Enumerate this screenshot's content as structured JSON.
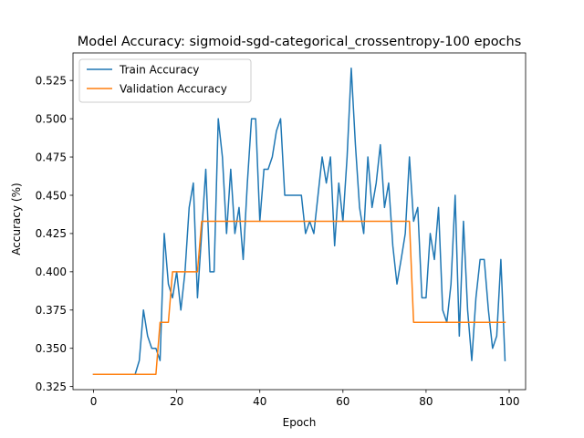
{
  "chart_data": {
    "type": "line",
    "title": "Model Accuracy: sigmoid-sgd-categorical_crossentropy-100 epochs",
    "xlabel": "Epoch",
    "ylabel": "Accuracy (%)",
    "xlim": [
      -4.95,
      103.95
    ],
    "ylim": [
      0.323,
      0.543
    ],
    "xticks": [
      0,
      20,
      40,
      60,
      80,
      100
    ],
    "yticks": [
      0.325,
      0.35,
      0.375,
      0.4,
      0.425,
      0.45,
      0.475,
      0.5,
      0.525
    ],
    "ytick_labels": [
      "0.325",
      "0.350",
      "0.375",
      "0.400",
      "0.425",
      "0.450",
      "0.475",
      "0.500",
      "0.525"
    ],
    "grid": false,
    "legend_position": "top-left",
    "series": [
      {
        "name": "Train Accuracy",
        "color": "#1f77b4",
        "values": [
          0.333,
          0.333,
          0.333,
          0.333,
          0.333,
          0.333,
          0.333,
          0.333,
          0.333,
          0.333,
          0.333,
          0.342,
          0.375,
          0.358,
          0.35,
          0.35,
          0.342,
          0.425,
          0.392,
          0.383,
          0.4,
          0.375,
          0.4,
          0.442,
          0.458,
          0.383,
          0.425,
          0.467,
          0.4,
          0.4,
          0.5,
          0.475,
          0.425,
          0.467,
          0.425,
          0.442,
          0.408,
          0.458,
          0.5,
          0.5,
          0.433,
          0.467,
          0.467,
          0.475,
          0.492,
          0.5,
          0.45,
          0.45,
          0.45,
          0.45,
          0.45,
          0.425,
          0.433,
          0.425,
          0.45,
          0.475,
          0.458,
          0.475,
          0.417,
          0.458,
          0.433,
          0.475,
          0.533,
          0.483,
          0.442,
          0.425,
          0.475,
          0.442,
          0.458,
          0.483,
          0.442,
          0.458,
          0.417,
          0.392,
          0.408,
          0.425,
          0.475,
          0.433,
          0.442,
          0.383,
          0.383,
          0.425,
          0.408,
          0.442,
          0.375,
          0.367,
          0.392,
          0.45,
          0.358,
          0.433,
          0.375,
          0.342,
          0.383,
          0.408,
          0.408,
          0.375,
          0.35,
          0.358,
          0.408,
          0.342
        ]
      },
      {
        "name": "Validation Accuracy",
        "color": "#ff7f0e",
        "values": [
          0.333,
          0.333,
          0.333,
          0.333,
          0.333,
          0.333,
          0.333,
          0.333,
          0.333,
          0.333,
          0.333,
          0.333,
          0.333,
          0.333,
          0.333,
          0.333,
          0.367,
          0.367,
          0.367,
          0.4,
          0.4,
          0.4,
          0.4,
          0.4,
          0.4,
          0.4,
          0.433,
          0.433,
          0.433,
          0.433,
          0.433,
          0.433,
          0.433,
          0.433,
          0.433,
          0.433,
          0.433,
          0.433,
          0.433,
          0.433,
          0.433,
          0.433,
          0.433,
          0.433,
          0.433,
          0.433,
          0.433,
          0.433,
          0.433,
          0.433,
          0.433,
          0.433,
          0.433,
          0.433,
          0.433,
          0.433,
          0.433,
          0.433,
          0.433,
          0.433,
          0.433,
          0.433,
          0.433,
          0.433,
          0.433,
          0.433,
          0.433,
          0.433,
          0.433,
          0.433,
          0.433,
          0.433,
          0.433,
          0.433,
          0.433,
          0.433,
          0.433,
          0.367,
          0.367,
          0.367,
          0.367,
          0.367,
          0.367,
          0.367,
          0.367,
          0.367,
          0.367,
          0.367,
          0.367,
          0.367,
          0.367,
          0.367,
          0.367,
          0.367,
          0.367,
          0.367,
          0.367,
          0.367,
          0.367,
          0.367
        ]
      }
    ]
  }
}
